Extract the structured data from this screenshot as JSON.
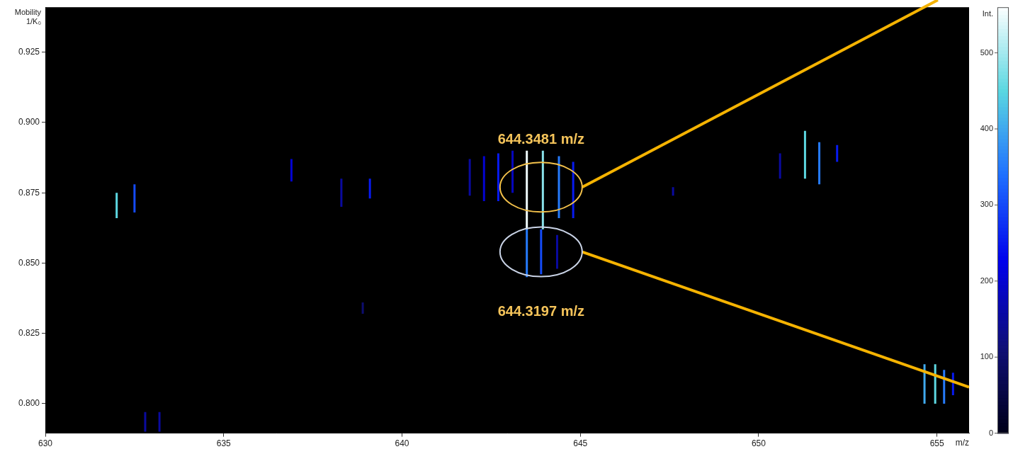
{
  "chart_data": {
    "type": "heatmap",
    "x_label": "m/z",
    "y_label": [
      "Mobility",
      "1/K₀"
    ],
    "xlim": [
      630,
      655.9
    ],
    "xticks": [
      630,
      635,
      640,
      645,
      650,
      655
    ],
    "ylim": [
      0.7895,
      0.941
    ],
    "yticks": [
      {
        "value": 0.8,
        "label": "0.800"
      },
      {
        "value": 0.825,
        "label": "0.825"
      },
      {
        "value": 0.85,
        "label": "0.850"
      },
      {
        "value": 0.875,
        "label": "0.875"
      },
      {
        "value": 0.9,
        "label": "0.900"
      },
      {
        "value": 0.925,
        "label": "0.925"
      }
    ],
    "grid": false,
    "peaks": [
      {
        "mz": 643.5,
        "mobility": [
          0.862,
          0.89
        ],
        "intensity": 550
      },
      {
        "mz": 643.95,
        "mobility": [
          0.862,
          0.89
        ],
        "intensity": 480
      },
      {
        "mz": 644.4,
        "mobility": [
          0.866,
          0.888
        ],
        "intensity": 350
      },
      {
        "mz": 644.8,
        "mobility": [
          0.866,
          0.886
        ],
        "intensity": 250
      },
      {
        "mz": 642.3,
        "mobility": [
          0.872,
          0.888
        ],
        "intensity": 200
      },
      {
        "mz": 642.7,
        "mobility": [
          0.872,
          0.889
        ],
        "intensity": 250
      },
      {
        "mz": 643.1,
        "mobility": [
          0.875,
          0.89
        ],
        "intensity": 180
      },
      {
        "mz": 641.9,
        "mobility": [
          0.874,
          0.887
        ],
        "intensity": 150
      },
      {
        "mz": 643.5,
        "mobility": [
          0.845,
          0.862
        ],
        "intensity": 350
      },
      {
        "mz": 643.9,
        "mobility": [
          0.846,
          0.862
        ],
        "intensity": 300
      },
      {
        "mz": 644.35,
        "mobility": [
          0.848,
          0.86
        ],
        "intensity": 150
      },
      {
        "mz": 632.0,
        "mobility": [
          0.866,
          0.875
        ],
        "intensity": 450
      },
      {
        "mz": 632.5,
        "mobility": [
          0.868,
          0.878
        ],
        "intensity": 300
      },
      {
        "mz": 636.9,
        "mobility": [
          0.879,
          0.887
        ],
        "intensity": 200
      },
      {
        "mz": 638.3,
        "mobility": [
          0.87,
          0.88
        ],
        "intensity": 150
      },
      {
        "mz": 639.1,
        "mobility": [
          0.873,
          0.88
        ],
        "intensity": 250
      },
      {
        "mz": 638.9,
        "mobility": [
          0.832,
          0.836
        ],
        "intensity": 100
      },
      {
        "mz": 651.3,
        "mobility": [
          0.88,
          0.897
        ],
        "intensity": 450
      },
      {
        "mz": 651.7,
        "mobility": [
          0.878,
          0.893
        ],
        "intensity": 350
      },
      {
        "mz": 652.2,
        "mobility": [
          0.886,
          0.892
        ],
        "intensity": 250
      },
      {
        "mz": 650.6,
        "mobility": [
          0.88,
          0.889
        ],
        "intensity": 150
      },
      {
        "mz": 647.6,
        "mobility": [
          0.874,
          0.877
        ],
        "intensity": 150
      },
      {
        "mz": 654.65,
        "mobility": [
          0.8,
          0.814
        ],
        "intensity": 400
      },
      {
        "mz": 654.95,
        "mobility": [
          0.8,
          0.814
        ],
        "intensity": 450
      },
      {
        "mz": 655.2,
        "mobility": [
          0.8,
          0.812
        ],
        "intensity": 350
      },
      {
        "mz": 655.45,
        "mobility": [
          0.803,
          0.811
        ],
        "intensity": 250
      },
      {
        "mz": 632.8,
        "mobility": [
          0.79,
          0.797
        ],
        "intensity": 150
      },
      {
        "mz": 633.2,
        "mobility": [
          0.79,
          0.797
        ],
        "intensity": 150
      }
    ],
    "colorbar": {
      "label": "Int.",
      "range": [
        0,
        560
      ],
      "ticks": [
        0,
        100,
        200,
        300,
        400,
        500
      ]
    },
    "annotations": [
      {
        "text": "644.3481 m/z",
        "mz": 643.9,
        "mobility": 0.877
      },
      {
        "text": "644.3197 m/z",
        "mz": 643.9,
        "mobility": 0.854
      }
    ]
  }
}
